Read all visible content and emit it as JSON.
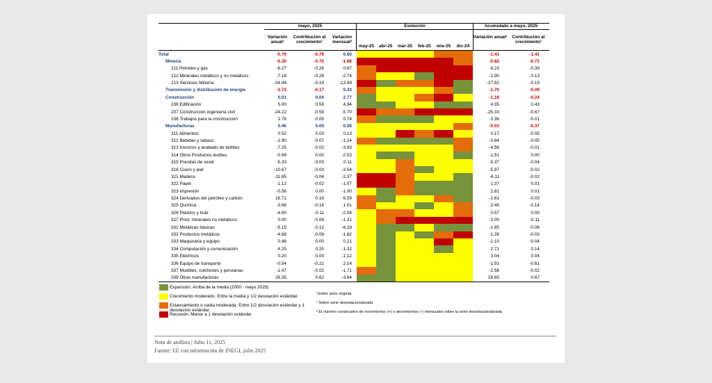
{
  "header": {
    "group1": "mayo, 2025",
    "group2": "Evolución",
    "group3": "Acumulado a mayo, 2025",
    "columns": [
      "Variación anual¹",
      "Contribución al crecimiento¹",
      "Variación mensual²"
    ],
    "months": [
      "may-25",
      "abr-25",
      "mar-25",
      "feb-25",
      "ene-25",
      "dic-24"
    ],
    "acc_columns": [
      "Variación anual¹",
      "Contribución al crecimiento¹"
    ]
  },
  "legend": [
    {
      "color": "#77933c",
      "label": "Expansión. Arriba de la media (2000 - mayo 2025)"
    },
    {
      "color": "#ffff00",
      "label": "Crecimiento moderado. Entre la media y 1/2 desviación estándar."
    },
    {
      "color": "#e46c0a",
      "label": "Estancamiento o caída moderada. Entre 1/2 desviación estándar y 1 desviación estándar."
    },
    {
      "color": "#c00000",
      "label": "Recesión. Menor a 1 desviación estándar"
    }
  ],
  "rows": [
    {
      "name": "Total",
      "values": [
        "-0.79",
        "-0.79",
        "0.60"
      ],
      "heat": [
        1,
        1,
        1,
        1,
        2,
        2
      ],
      "acc": [
        "-1.41",
        "-1.41"
      ]
    },
    {
      "name": "Minería",
      "values": [
        "-0.30",
        "-0.72",
        "-1.66"
      ],
      "heat": [
        3,
        3,
        3,
        3,
        3,
        2
      ],
      "acc": [
        "-0.82",
        "-0.71"
      ]
    },
    {
      "name": "211 Petróleo y gas",
      "values": [
        "-6.27",
        "-0.26",
        "0.67"
      ],
      "heat": [
        2,
        3,
        3,
        3,
        3,
        3
      ],
      "acc": [
        "-9.23",
        "-0.39"
      ]
    },
    {
      "name": "212 Minerales metálicos y no metálicos",
      "values": [
        "-7.18",
        "-0.28",
        "-2.74"
      ],
      "heat": [
        2,
        1,
        1,
        0,
        3,
        3
      ],
      "acc": [
        "-2.90",
        "-0.13"
      ]
    },
    {
      "name": "213 Servicios Minería",
      "values": [
        "-34.44",
        "-0.19",
        "-13.69"
      ],
      "heat": [
        3,
        0,
        2,
        2,
        3,
        0
      ],
      "acc": [
        "-27.82",
        "-0.19"
      ]
    },
    {
      "name": "Transmisión y distribución de energía",
      "values": [
        "-3.72",
        "-0.17",
        "0.43"
      ],
      "heat": [
        2,
        1,
        1,
        1,
        2,
        0
      ],
      "acc": [
        "-1.70",
        "-0.09"
      ]
    },
    {
      "name": "Construcción",
      "values": [
        "0.01",
        "0.04",
        "2.77"
      ],
      "heat": [
        0,
        1,
        1,
        2,
        3,
        1
      ],
      "acc": [
        "-1.18",
        "-0.24"
      ]
    },
    {
      "name": "236 Edificación",
      "values": [
        "5.00",
        "0.59",
        "4.94"
      ],
      "heat": [
        0,
        0,
        1,
        1,
        0,
        0
      ],
      "acc": [
        "4.35",
        "0.43"
      ]
    },
    {
      "name": "237 Construcción ingeniería civil",
      "values": [
        "-24.22",
        "-0.59",
        "-5.70"
      ],
      "heat": [
        3,
        2,
        2,
        3,
        3,
        3
      ],
      "acc": [
        "-25.33",
        "-0.67"
      ]
    },
    {
      "name": "238 Trabajos para la construcción",
      "values": [
        "1.76",
        "0.05",
        "0.74"
      ],
      "heat": [
        2,
        0,
        0,
        0,
        1,
        1
      ],
      "acc": [
        "0.36",
        "-0.01"
      ]
    },
    {
      "name": "Manufacturas",
      "values": [
        "0.46",
        "0.09",
        "0.06"
      ],
      "heat": [
        1,
        1,
        1,
        1,
        1,
        2
      ],
      "acc": [
        "-0.03",
        "-0.37"
      ]
    },
    {
      "name": "311 Alimentos",
      "values": [
        "0.52",
        "0.03",
        "0.13"
      ],
      "heat": [
        1,
        1,
        3,
        2,
        3,
        1
      ],
      "acc": [
        "0.17",
        "-0.05"
      ]
    },
    {
      "name": "312 Bebidas y tabaco",
      "values": [
        "-1.90",
        "-0.07",
        "-1.14"
      ],
      "heat": [
        2,
        0,
        0,
        0,
        0,
        2
      ],
      "acc": [
        "-0.84",
        "-0.05"
      ]
    },
    {
      "name": "313 Insumos y acabado de textiles",
      "values": [
        "-7.25",
        "-0.02",
        "-3.63"
      ],
      "heat": [
        1,
        1,
        1,
        1,
        1,
        2
      ],
      "acc": [
        "-4.56",
        "-0.01"
      ]
    },
    {
      "name": "314 Otros Productos textiles",
      "values": [
        "-0.99",
        "0.00",
        "-2.53"
      ],
      "heat": [
        1,
        0,
        0,
        1,
        1,
        0
      ],
      "acc": [
        "-1.51",
        "0.00"
      ]
    },
    {
      "name": "315 Prendas de vestir",
      "values": [
        "-5.33",
        "-0.03",
        "0.11"
      ],
      "heat": [
        1,
        1,
        2,
        1,
        1,
        1
      ],
      "acc": [
        "-5.37",
        "-0.04"
      ]
    },
    {
      "name": "316 Cuero y piel",
      "values": [
        "-10.67",
        "-0.03",
        "-3.54"
      ],
      "heat": [
        1,
        1,
        2,
        0,
        1,
        1
      ],
      "acc": [
        "-5.97",
        "-0.02"
      ]
    },
    {
      "name": "321 Madera",
      "values": [
        "-11.85",
        "-0.04",
        "-2.37"
      ],
      "heat": [
        3,
        3,
        2,
        1,
        1,
        0
      ],
      "acc": [
        "-6.11",
        "-0.02"
      ]
    },
    {
      "name": "322 Papel",
      "values": [
        "-1.12",
        "-0.02",
        "-1.07"
      ],
      "heat": [
        3,
        3,
        2,
        0,
        0,
        0
      ],
      "acc": [
        "1.37",
        "0.01"
      ]
    },
    {
      "name": "323 Impresión",
      "values": [
        "-0.56",
        "0.00",
        "-1.00"
      ],
      "heat": [
        1,
        0,
        2,
        0,
        0,
        0
      ],
      "acc": [
        "2.81",
        "0.01"
      ]
    },
    {
      "name": "324 Derivados del petróleo y carbón",
      "values": [
        "16.71",
        "0.16",
        "6.59"
      ],
      "heat": [
        2,
        0,
        1,
        1,
        2,
        0
      ],
      "acc": [
        "-1.61",
        "-0.03"
      ]
    },
    {
      "name": "325 Química",
      "values": [
        "-3.98",
        "-0.14",
        "1.01"
      ],
      "heat": [
        2,
        1,
        1,
        0,
        1,
        2
      ],
      "acc": [
        "-3.49",
        "-0.14"
      ]
    },
    {
      "name": "326 Plástico y hule",
      "values": [
        "-4.60",
        "-0.11",
        "-2.08"
      ],
      "heat": [
        1,
        2,
        2,
        1,
        1,
        2
      ],
      "acc": [
        "0.57",
        "0.00"
      ]
    },
    {
      "name": "327 Prod. minerales no metálicos",
      "values": [
        "0.00",
        "-0.09",
        "-1.31"
      ],
      "heat": [
        1,
        2,
        3,
        3,
        3,
        3
      ],
      "acc": [
        "0.00",
        "-0.11"
      ]
    },
    {
      "name": "331 Metálicas básicas",
      "values": [
        "-5.15",
        "-0.12",
        "-6.19"
      ],
      "heat": [
        1,
        0,
        0,
        1,
        0,
        0
      ],
      "acc": [
        "-1.85",
        "-0.06"
      ]
    },
    {
      "name": "332 Productos metálicos",
      "values": [
        "-4.68",
        "-0.08",
        "-1.82"
      ],
      "heat": [
        1,
        0,
        1,
        0,
        2,
        3
      ],
      "acc": [
        "-1.28",
        "-0.03"
      ]
    },
    {
      "name": "333 Maquinaria y equipo",
      "values": [
        "0.48",
        "0.00",
        "0.21"
      ],
      "heat": [
        1,
        0,
        1,
        1,
        3,
        1
      ],
      "acc": [
        "-1.10",
        "-0.04"
      ]
    },
    {
      "name": "334 Computación y comunicación",
      "values": [
        "4.25",
        "0.25",
        "-1.32"
      ],
      "heat": [
        1,
        0,
        1,
        1,
        0,
        1
      ],
      "acc": [
        "2.71",
        "0.14"
      ]
    },
    {
      "name": "335 Eléctricos",
      "values": [
        "0.20",
        "0.00",
        "-1.12"
      ],
      "heat": [
        1,
        0,
        1,
        1,
        1,
        1
      ],
      "acc": [
        "3.04",
        "0.04"
      ]
    },
    {
      "name": "336 Equipo de transporte",
      "values": [
        "-0.54",
        "-0.21",
        "2.14"
      ],
      "heat": [
        1,
        0,
        1,
        1,
        1,
        1
      ],
      "acc": [
        "-1.91",
        "-0.61"
      ]
    },
    {
      "name": "337 Muebles, colchones y persianas",
      "values": [
        "-1.47",
        "-0.02",
        "-1.71"
      ],
      "heat": [
        2,
        0,
        1,
        1,
        1,
        1
      ],
      "acc": [
        "-2.58",
        "-0.02"
      ]
    },
    {
      "name": "339 Otras manufacturas",
      "values": [
        "26.35",
        "0.62",
        "-3.64"
      ],
      "heat": [
        0,
        0,
        1,
        1,
        1,
        1
      ],
      "acc": [
        "29.85",
        "0.67"
      ]
    }
  ],
  "notes": [
    "¹Sobre serie original.",
    "² Sobre serie desestacionalizada.",
    "³ El número consecutivo de incrementos (+) o decrementos (-) mensuales sobre la serie desestacionalizada."
  ],
  "footer": [
    "Nota de análisis | Julio 11, 2025",
    "Fuente: EE con información de INEGI, julio 2025"
  ]
}
